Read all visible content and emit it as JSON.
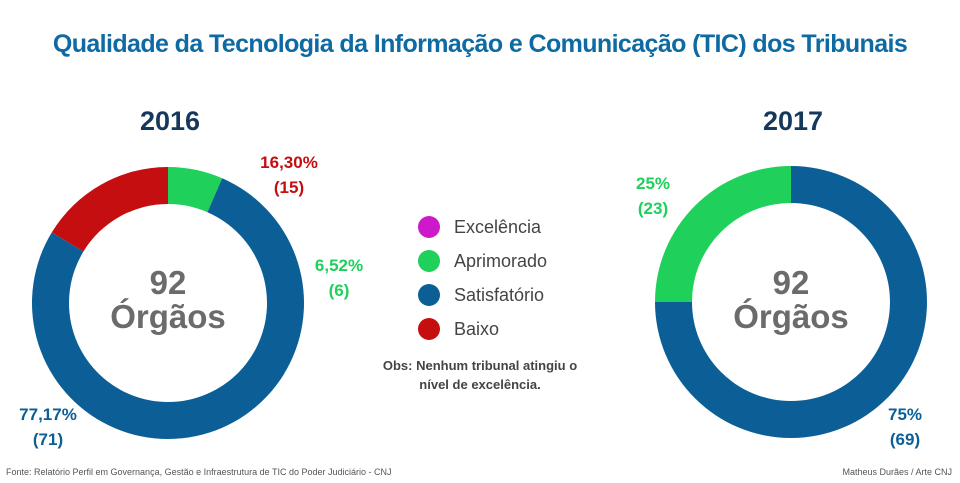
{
  "title": "Qualidade da Tecnologia da Informação e Comunicação (TIC) dos Tribunais",
  "legend": [
    {
      "label": "Excelência",
      "color": "#cc19c9"
    },
    {
      "label": "Aprimorado",
      "color": "#1fd05a"
    },
    {
      "label": "Satisfatório",
      "color": "#0b5f96"
    },
    {
      "label": "Baixo",
      "color": "#c50e10"
    }
  ],
  "obs": {
    "line1": "Obs: Nenhum tribunal atingiu o",
    "line2": "nível de excelência."
  },
  "footer": {
    "source": "Fonte: Relatório Perfil em Governança, Gestão e Infraestrutura de TIC do Poder Judiciário - CNJ",
    "credit": "Matheus Durães / Arte CNJ"
  },
  "chart_data": [
    {
      "type": "pie",
      "title": "2016",
      "center": {
        "number": "92",
        "unit": "Órgãos"
      },
      "total": 92,
      "slices": [
        {
          "name": "Aprimorado",
          "value": 6,
          "percent_label": "6,52%",
          "count_label": "(6)",
          "color": "#1fd05a"
        },
        {
          "name": "Satisfatório",
          "value": 71,
          "percent_label": "77,17%",
          "count_label": "(71)",
          "color": "#0b5f96"
        },
        {
          "name": "Baixo",
          "value": 15,
          "percent_label": "16,30%",
          "count_label": "(15)",
          "color": "#c50e10"
        }
      ]
    },
    {
      "type": "pie",
      "title": "2017",
      "center": {
        "number": "92",
        "unit": "Órgãos"
      },
      "total": 92,
      "slices": [
        {
          "name": "Satisfatório",
          "value": 69,
          "percent_label": "75%",
          "count_label": "(69)",
          "color": "#0b5f96"
        },
        {
          "name": "Aprimorado",
          "value": 23,
          "percent_label": "25%",
          "count_label": "(23)",
          "color": "#1fd05a"
        }
      ]
    }
  ]
}
